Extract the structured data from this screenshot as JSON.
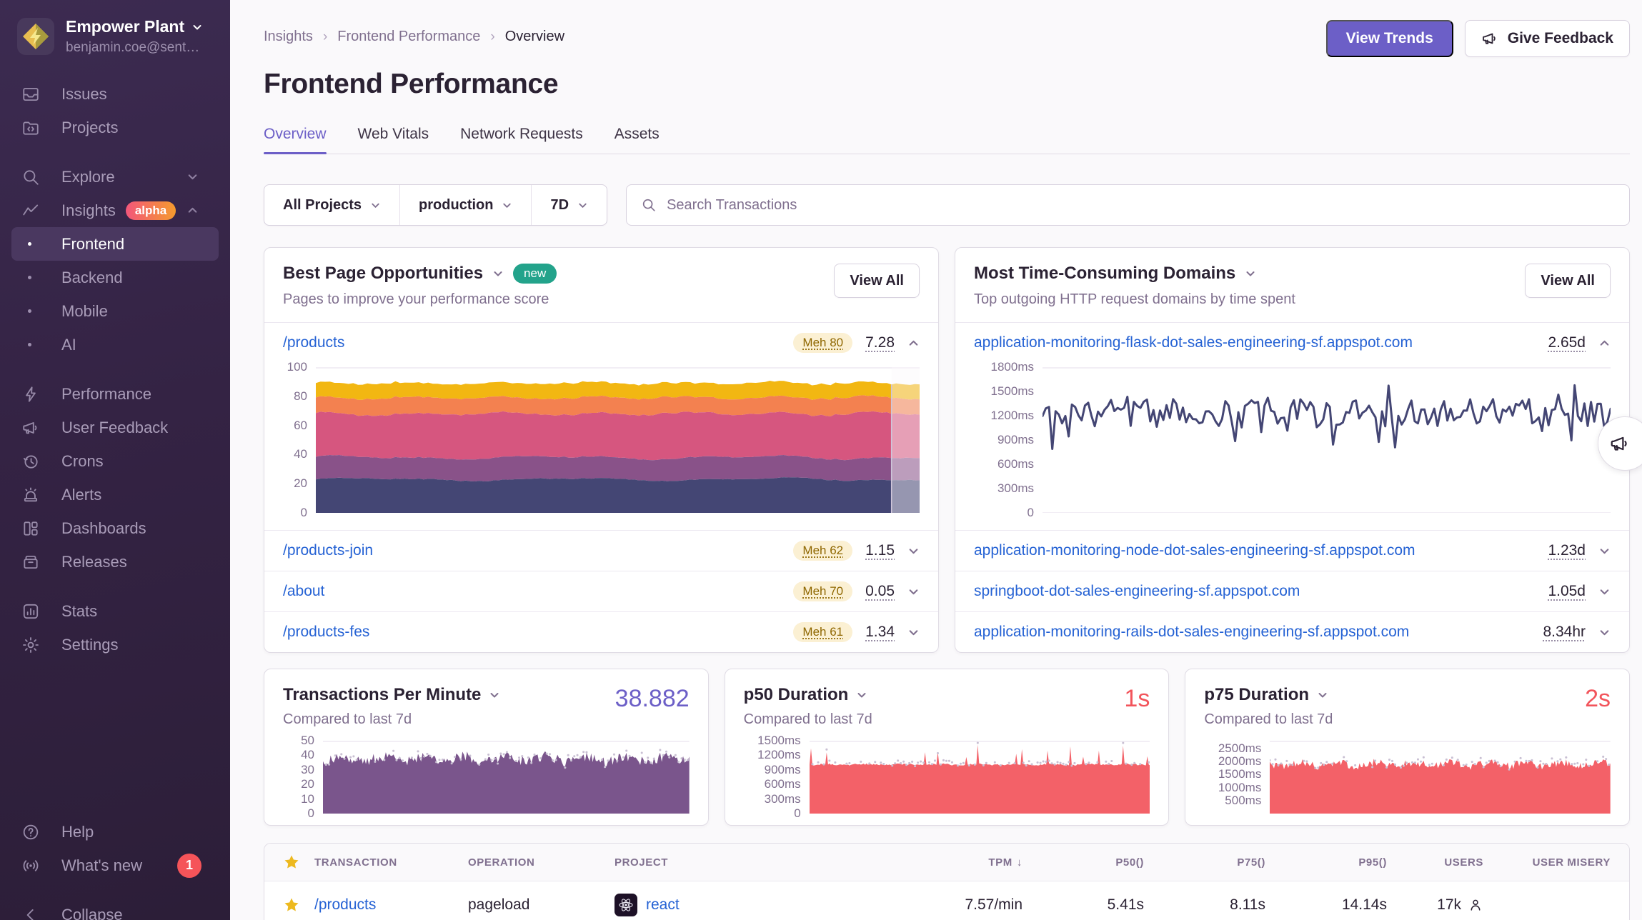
{
  "colors": {
    "accent": "#6C5FC7",
    "link_blue": "#2562D4",
    "red_value": "#F2545B",
    "navy": "#444674",
    "purple_fill": "#7A558C",
    "red_fill": "#F36168",
    "teal_badge": "#23A38B",
    "meh_bg": "#FBF0D3",
    "meh_text": "#8F6700"
  },
  "sidebar": {
    "org_name": "Empower Plant",
    "org_email": "benjamin.coe@sent…",
    "items_top": [
      {
        "label": "Issues"
      },
      {
        "label": "Projects"
      }
    ],
    "explore_label": "Explore",
    "insights_label": "Insights",
    "insights_badge": "alpha",
    "submenu": [
      {
        "label": "Frontend",
        "active": true
      },
      {
        "label": "Backend"
      },
      {
        "label": "Mobile"
      },
      {
        "label": "AI"
      }
    ],
    "items_mid": [
      {
        "label": "Performance"
      },
      {
        "label": "User Feedback"
      },
      {
        "label": "Crons"
      },
      {
        "label": "Alerts"
      },
      {
        "label": "Dashboards"
      },
      {
        "label": "Releases"
      }
    ],
    "items_lower": [
      {
        "label": "Stats"
      },
      {
        "label": "Settings"
      }
    ],
    "help_label": "Help",
    "whats_new_label": "What's new",
    "whats_new_badge": "1",
    "collapse_label": "Collapse"
  },
  "header": {
    "breadcrumbs": [
      "Insights",
      "Frontend Performance",
      "Overview"
    ],
    "title": "Frontend Performance",
    "view_trends_label": "View Trends",
    "give_feedback_label": "Give Feedback"
  },
  "tabs": [
    {
      "label": "Overview",
      "active": true
    },
    {
      "label": "Web Vitals"
    },
    {
      "label": "Network Requests"
    },
    {
      "label": "Assets"
    }
  ],
  "filters": {
    "project": "All Projects",
    "environment": "production",
    "date_range": "7D",
    "search_placeholder": "Search Transactions"
  },
  "best_pages": {
    "title": "Best Page Opportunities",
    "badge": "new",
    "subtitle": "Pages to improve your performance score",
    "view_all_label": "View All",
    "rows": [
      {
        "path": "/products",
        "score_label": "Meh 80",
        "value": "7.28",
        "expanded": true
      },
      {
        "path": "/products-join",
        "score_label": "Meh 62",
        "value": "1.15",
        "expanded": false
      },
      {
        "path": "/about",
        "score_label": "Meh 70",
        "value": "0.05",
        "expanded": false
      },
      {
        "path": "/products-fes",
        "score_label": "Meh 61",
        "value": "1.34",
        "expanded": false
      }
    ]
  },
  "domains": {
    "title": "Most Time-Consuming Domains",
    "subtitle": "Top outgoing HTTP request domains by time spent",
    "view_all_label": "View All",
    "rows": [
      {
        "domain": "application-monitoring-flask-dot-sales-engineering-sf.appspot.com",
        "time": "2.65d",
        "expanded": true
      },
      {
        "domain": "application-monitoring-node-dot-sales-engineering-sf.appspot.com",
        "time": "1.23d",
        "expanded": false
      },
      {
        "domain": "springboot-dot-sales-engineering-sf.appspot.com",
        "time": "1.05d",
        "expanded": false
      },
      {
        "domain": "application-monitoring-rails-dot-sales-engineering-sf.appspot.com",
        "time": "8.34hr",
        "expanded": false
      }
    ]
  },
  "metrics": [
    {
      "title": "Transactions Per Minute",
      "value": "38.882",
      "subtitle": "Compared to last 7d",
      "value_color": "#6C5FC7"
    },
    {
      "title": "p50 Duration",
      "value": "1s",
      "subtitle": "Compared to last 7d",
      "value_color": "#F2545B"
    },
    {
      "title": "p75 Duration",
      "value": "2s",
      "subtitle": "Compared to last 7d",
      "value_color": "#F2545B"
    }
  ],
  "table": {
    "headers": [
      "TRANSACTION",
      "OPERATION",
      "PROJECT",
      "TPM",
      "P50()",
      "P75()",
      "P95()",
      "USERS",
      "USER MISERY"
    ],
    "sort_column": "TPM",
    "sort_direction": "desc",
    "rows": [
      {
        "starred": true,
        "transaction": "/products",
        "operation": "pageload",
        "project": "react",
        "tpm": "7.57/min",
        "p50": "5.41s",
        "p75": "8.11s",
        "p95": "14.14s",
        "users": "17k",
        "user_misery_bars": 11
      }
    ]
  },
  "chart_data": [
    {
      "id": "best-page-web-vitals-breakdown",
      "type": "stacked-area",
      "title": "/products performance score breakdown over 7d",
      "ylim": [
        0,
        100
      ],
      "yticks": [
        {
          "v": 100,
          "label": "100"
        },
        {
          "v": 80,
          "label": "80"
        },
        {
          "v": 60,
          "label": "60"
        },
        {
          "v": 40,
          "label": "40"
        },
        {
          "v": 20,
          "label": "20"
        },
        {
          "v": 0,
          "label": "0"
        }
      ],
      "series": [
        {
          "name": "band-1",
          "color": "#444674",
          "avg": 23
        },
        {
          "name": "band-2",
          "color": "#895289",
          "avg": 15
        },
        {
          "name": "band-3",
          "color": "#d6567f",
          "avg": 30
        },
        {
          "name": "band-4",
          "color": "#f38150",
          "avg": 11
        },
        {
          "name": "band-5",
          "color": "#f2b712",
          "avg": 10
        }
      ],
      "stack_total_avg": 89,
      "n": 130,
      "seed": 7
    },
    {
      "id": "flask-domain-avg-duration",
      "type": "line",
      "title": "application-monitoring-flask avg duration over 7d",
      "ylim": [
        0,
        1800
      ],
      "yticks": [
        {
          "v": 1800,
          "label": "1800ms"
        },
        {
          "v": 1500,
          "label": "1500ms"
        },
        {
          "v": 1200,
          "label": "1200ms"
        },
        {
          "v": 900,
          "label": "900ms"
        },
        {
          "v": 600,
          "label": "600ms"
        },
        {
          "v": 300,
          "label": "300ms"
        },
        {
          "v": 0,
          "label": "0"
        }
      ],
      "color": "#444674",
      "avg": 1230,
      "noise": 175,
      "range": [
        790,
        1660
      ],
      "n": 175,
      "seed": 3
    },
    {
      "id": "transactions-per-minute",
      "type": "area",
      "title": "Transactions Per Minute vs last 7d",
      "current_value": 38.882,
      "ylim": [
        0,
        50
      ],
      "yticks": [
        {
          "v": 50,
          "label": "50"
        },
        {
          "v": 40,
          "label": "40"
        },
        {
          "v": 30,
          "label": "30"
        },
        {
          "v": 20,
          "label": "20"
        },
        {
          "v": 10,
          "label": "10"
        },
        {
          "v": 0,
          "label": "0"
        }
      ],
      "color": "#7A558C",
      "dot_color": "#C9C0D3",
      "avg": 37.5,
      "noise": 3.5,
      "range": [
        30,
        45.5
      ],
      "n": 240,
      "seed": 11
    },
    {
      "id": "p50-duration",
      "type": "area",
      "title": "p50 Duration vs last 7d",
      "current_value_label": "1s",
      "ylim": [
        0,
        1500
      ],
      "yticks": [
        {
          "v": 1500,
          "label": "1500ms"
        },
        {
          "v": 1200,
          "label": "1200ms"
        },
        {
          "v": 900,
          "label": "900ms"
        },
        {
          "v": 600,
          "label": "600ms"
        },
        {
          "v": 300,
          "label": "300ms"
        },
        {
          "v": 0,
          "label": "0"
        }
      ],
      "color": "#F36168",
      "dot_color": "#C9C0D3",
      "avg": 1010,
      "noise": 16,
      "spike": {
        "p": 0.05,
        "min": 140,
        "max": 420
      },
      "range": [
        960,
        1440
      ],
      "n": 240,
      "seed": 5
    },
    {
      "id": "p75-duration",
      "type": "area",
      "title": "p75 Duration vs last 7d",
      "current_value_label": "2s",
      "ylim": [
        0,
        2800
      ],
      "yticks": [
        {
          "v": 2500,
          "label": "2500ms"
        },
        {
          "v": 2000,
          "label": "2000ms"
        },
        {
          "v": 1500,
          "label": "1500ms"
        },
        {
          "v": 1000,
          "label": "1000ms"
        },
        {
          "v": 500,
          "label": "500ms"
        }
      ],
      "color": "#F36168",
      "dot_color": "#C9C0D3",
      "avg": 1900,
      "noise": 150,
      "range": [
        1520,
        2330
      ],
      "n": 240,
      "seed": 9
    }
  ]
}
